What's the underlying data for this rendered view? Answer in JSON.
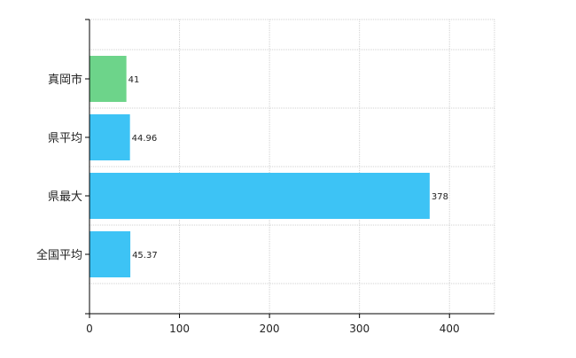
{
  "chart_data": {
    "type": "bar",
    "orientation": "horizontal",
    "categories": [
      "真岡市",
      "県平均",
      "県最大",
      "全国平均"
    ],
    "values": [
      41,
      44.96,
      378,
      45.37
    ],
    "value_labels": [
      "41",
      "44.96",
      "378",
      "45.37"
    ],
    "bar_colors": [
      "#6dd48a",
      "#3dc3f5",
      "#3dc3f5",
      "#3dc3f5"
    ],
    "x_ticks": [
      "0",
      "100",
      "200",
      "300",
      "400"
    ],
    "xlim": [
      0,
      450
    ],
    "grid": true,
    "title": "",
    "xlabel": "",
    "ylabel": ""
  },
  "colors": {
    "grid": "#d0d0d0",
    "axis": "#000000"
  }
}
